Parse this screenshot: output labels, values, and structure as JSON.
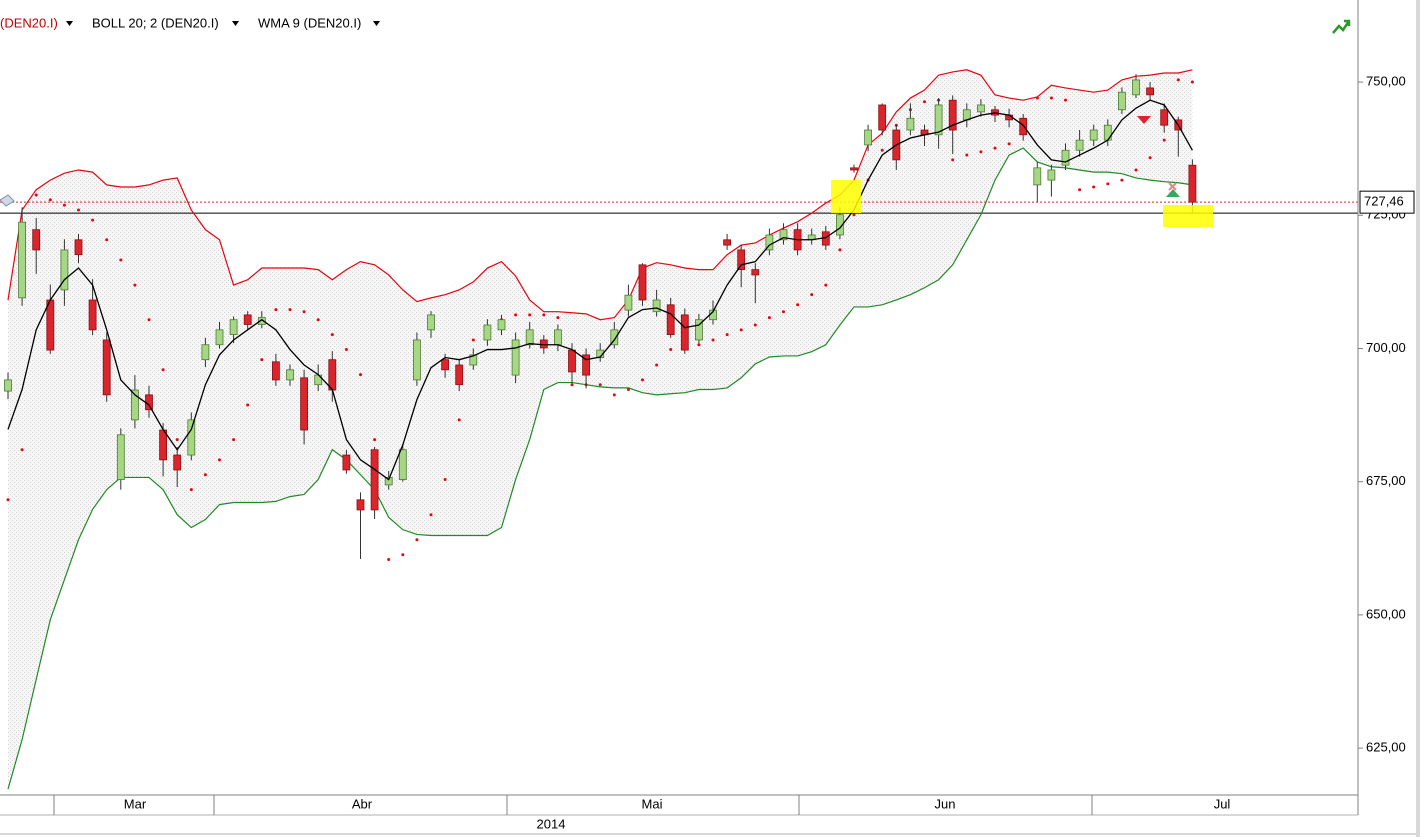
{
  "chart_data": {
    "type": "candlestick",
    "instrument_label": "(DEN20.I)",
    "open": [
      692.0,
      709.5,
      722.3,
      709.1,
      711.0,
      720.4,
      709.1,
      701.6,
      675.4,
      686.6,
      691.3,
      684.7,
      680.0,
      680.0,
      697.9,
      700.7,
      702.6,
      706.3,
      704.5,
      697.5,
      694.1,
      694.5,
      693.2,
      697.9,
      680.0,
      671.6,
      681.0,
      674.4,
      675.4,
      694.1,
      703.5,
      697.9,
      696.9,
      696.9,
      701.6,
      703.5,
      695.0,
      700.7,
      701.6,
      700.7,
      699.7,
      698.8,
      698.3,
      700.7,
      707.2,
      715.7,
      706.9,
      708.2,
      706.3,
      701.6,
      705.4,
      720.4,
      718.5,
      714.8,
      718.5,
      720.4,
      722.3,
      720.4,
      721.9,
      721.3,
      733.9,
      738.2,
      745.7,
      741.0,
      741.0,
      741.0,
      740.1,
      746.6,
      742.9,
      744.4,
      744.8,
      743.8,
      743.2,
      730.7,
      731.6,
      734.4,
      737.2,
      739.1,
      739.1,
      744.8,
      747.6,
      748.9,
      744.8,
      742.9,
      734.4
    ],
    "high": [
      695.5,
      726.5,
      724.5,
      712.0,
      720.5,
      721.5,
      713.0,
      703.0,
      685.0,
      695.0,
      693.0,
      686.0,
      681.5,
      688.0,
      702.0,
      705.0,
      706.0,
      707.0,
      707.0,
      699.0,
      697.0,
      696.0,
      697.0,
      699.5,
      681.0,
      673.0,
      681.5,
      677.0,
      682.0,
      703.0,
      707.0,
      699.0,
      698.0,
      700.0,
      705.5,
      706.3,
      703.0,
      705.0,
      702.5,
      704.5,
      701.0,
      700.0,
      701.0,
      705.0,
      712.0,
      716.0,
      711.0,
      709.5,
      707.5,
      706.5,
      709.0,
      721.5,
      719.5,
      716.0,
      722.5,
      723.5,
      723.5,
      722.5,
      723.0,
      726.5,
      734.5,
      742.0,
      746.0,
      742.0,
      746.0,
      742.0,
      747.0,
      747.5,
      746.0,
      746.8,
      745.5,
      745.0,
      744.0,
      735.0,
      734.5,
      738.5,
      741.0,
      742.0,
      743.0,
      749.0,
      751.5,
      750.0,
      746.0,
      743.5,
      735.5
    ],
    "low": [
      690.5,
      708.0,
      714.0,
      699.0,
      708.0,
      716.0,
      702.5,
      690.0,
      673.5,
      685.0,
      687.0,
      676.0,
      674.0,
      679.0,
      696.5,
      700.0,
      701.0,
      703.5,
      703.8,
      693.0,
      693.0,
      682.0,
      692.0,
      690.0,
      676.5,
      660.5,
      668.0,
      673.5,
      675.0,
      693.0,
      702.0,
      694.5,
      692.0,
      696.0,
      700.5,
      702.5,
      693.5,
      700.0,
      699.0,
      699.5,
      693.5,
      692.5,
      697.5,
      700.0,
      706.0,
      708.0,
      706.0,
      702.0,
      699.0,
      701.0,
      704.5,
      718.5,
      711.5,
      708.5,
      717.5,
      719.5,
      717.5,
      719.5,
      718.5,
      720.5,
      733.0,
      737.0,
      740.0,
      733.5,
      740.0,
      738.0,
      737.5,
      736.5,
      741.5,
      743.5,
      742.5,
      741.5,
      739.0,
      727.5,
      728.5,
      733.5,
      736.0,
      738.0,
      738.0,
      744.0,
      747.0,
      746.5,
      740.5,
      736.0,
      725.4
    ],
    "close": [
      694.1,
      723.7,
      718.5,
      699.7,
      718.5,
      717.6,
      703.5,
      691.3,
      683.8,
      692.2,
      688.5,
      679.1,
      677.2,
      686.6,
      700.7,
      703.5,
      705.4,
      704.5,
      705.8,
      694.1,
      696.0,
      684.7,
      695.0,
      692.2,
      677.2,
      669.7,
      669.7,
      675.8,
      681.0,
      701.6,
      706.3,
      696.0,
      693.2,
      698.8,
      704.4,
      705.4,
      701.6,
      703.5,
      700.1,
      703.5,
      695.6,
      695.0,
      699.7,
      703.5,
      710.0,
      709.1,
      709.1,
      702.6,
      699.7,
      705.4,
      707.2,
      719.4,
      714.8,
      713.8,
      721.3,
      722.3,
      718.5,
      721.3,
      719.4,
      725.1,
      733.5,
      741.0,
      741.0,
      735.4,
      743.2,
      740.1,
      745.7,
      741.0,
      744.8,
      745.7,
      743.8,
      742.9,
      740.1,
      733.9,
      733.5,
      737.2,
      739.1,
      741.0,
      741.9,
      748.1,
      750.4,
      747.6,
      741.9,
      741.0,
      727.46
    ],
    "up_color": "#a6d785",
    "down_color": "#d9252b",
    "bollinger": {
      "label": "BOLL 20; 2 (DEN20.I)",
      "upper_color": "#e30613",
      "lower_color": "#1f8b24",
      "upper": [
        709.1,
        726.0,
        729.8,
        731.6,
        732.9,
        733.5,
        733.1,
        730.7,
        730.3,
        730.3,
        730.7,
        731.6,
        732.0,
        726.0,
        722.3,
        720.4,
        711.9,
        712.9,
        715.1,
        715.1,
        715.1,
        715.1,
        714.8,
        712.9,
        714.8,
        716.3,
        715.7,
        713.8,
        711.0,
        708.8,
        709.5,
        710.1,
        711.0,
        712.5,
        715.1,
        716.3,
        713.6,
        709.1,
        706.9,
        706.9,
        706.7,
        706.5,
        705.4,
        705.8,
        709.1,
        715.1,
        716.1,
        715.7,
        715.1,
        714.8,
        714.8,
        717.6,
        719.4,
        719.8,
        721.3,
        722.6,
        723.8,
        725.4,
        727.3,
        728.8,
        731.6,
        738.2,
        740.4,
        744.4,
        747.0,
        748.5,
        751.3,
        751.9,
        752.3,
        751.3,
        747.6,
        747.0,
        746.6,
        747.2,
        749.4,
        748.9,
        748.5,
        748.1,
        748.5,
        750.4,
        751.1,
        751.3,
        751.7,
        751.7,
        752.3
      ],
      "lower": [
        617.3,
        626.6,
        637.9,
        649.1,
        656.6,
        664.1,
        669.8,
        673.5,
        675.8,
        675.8,
        675.8,
        673.5,
        668.8,
        666.4,
        667.9,
        670.7,
        671.1,
        671.1,
        671.1,
        671.3,
        672.2,
        672.6,
        675.4,
        681.0,
        679.1,
        676.3,
        673.5,
        668.3,
        666.0,
        665.1,
        664.9,
        664.9,
        664.9,
        664.9,
        664.9,
        666.4,
        675.4,
        682.9,
        692.3,
        693.6,
        693.6,
        693.2,
        692.8,
        692.6,
        692.6,
        691.7,
        691.3,
        691.5,
        691.7,
        692.3,
        692.3,
        692.6,
        694.5,
        697.1,
        698.4,
        698.6,
        698.6,
        699.4,
        700.7,
        704.4,
        707.8,
        707.8,
        708.2,
        709.1,
        710.1,
        711.4,
        712.9,
        715.7,
        720.4,
        725.1,
        731.6,
        736.3,
        737.6,
        735.0,
        734.1,
        733.9,
        733.5,
        733.1,
        733.1,
        732.8,
        732.0,
        731.6,
        731.3,
        731.1,
        730.7
      ]
    },
    "wma": {
      "label": "WMA 9 (DEN20.I)",
      "color": "#000000",
      "values": [
        684.8,
        692.3,
        703.5,
        709.1,
        712.9,
        715.1,
        711.9,
        703.5,
        694.1,
        691.3,
        689.4,
        684.8,
        681.0,
        684.8,
        693.2,
        698.8,
        701.6,
        703.5,
        705.4,
        703.5,
        699.8,
        696.9,
        695.1,
        692.3,
        682.9,
        679.1,
        677.3,
        675.4,
        681.9,
        690.4,
        696.4,
        698.3,
        697.9,
        698.6,
        699.8,
        699.8,
        700.1,
        700.9,
        700.7,
        700.7,
        699.8,
        697.9,
        698.4,
        701.6,
        705.8,
        707.3,
        707.6,
        706.5,
        703.9,
        704.4,
        706.9,
        711.9,
        715.7,
        716.3,
        719.4,
        720.8,
        720.4,
        720.4,
        720.8,
        722.6,
        726.0,
        731.6,
        736.3,
        738.2,
        739.5,
        740.1,
        740.6,
        741.9,
        742.9,
        743.8,
        744.2,
        743.8,
        741.9,
        738.2,
        735.4,
        735.0,
        736.3,
        737.6,
        739.1,
        742.9,
        745.1,
        746.6,
        745.7,
        741.9,
        737.2
      ]
    },
    "sar": {
      "color": "#e30613",
      "values": [
        671.6,
        681.0,
        728.8,
        727.9,
        726.9,
        726.0,
        724.1,
        720.4,
        716.6,
        711.9,
        705.4,
        696.0,
        682.9,
        673.5,
        676.3,
        679.1,
        682.9,
        689.4,
        697.9,
        707.3,
        707.3,
        706.9,
        705.4,
        702.6,
        699.8,
        695.1,
        682.9,
        660.4,
        661.3,
        664.1,
        668.8,
        675.4,
        686.6,
        701.6,
        703.5,
        705.4,
        706.3,
        706.3,
        706.3,
        705.8,
        693.2,
        693.2,
        693.2,
        691.3,
        692.3,
        694.1,
        696.9,
        699.8,
        700.3,
        700.7,
        701.6,
        702.6,
        703.5,
        704.4,
        705.8,
        706.9,
        708.2,
        710.1,
        711.9,
        718.5,
        725.1,
        731.6,
        737.2,
        741.9,
        744.8,
        746.3,
        746.6,
        735.4,
        736.3,
        736.9,
        737.6,
        738.4,
        741.9,
        747.0,
        747.0,
        746.6,
        729.8,
        730.3,
        730.9,
        731.6,
        733.5,
        735.8,
        739.1,
        750.4,
        750.0
      ]
    },
    "current_price": {
      "value": 727.46,
      "label": "727,46"
    },
    "reference_line": 725.4,
    "ylim": [
      616.2,
      765.4
    ],
    "yticks": [
      {
        "value": 625,
        "label": "625,00"
      },
      {
        "value": 650,
        "label": "650,00"
      },
      {
        "value": 675,
        "label": "675,00"
      },
      {
        "value": 700,
        "label": "700,00"
      },
      {
        "value": 725,
        "label": "725,00"
      },
      {
        "value": 750,
        "label": "750,00"
      }
    ],
    "x_labels": [
      "Mar",
      "Abr",
      "Mai",
      "Jun",
      "Jul"
    ],
    "x_group_label": "2014"
  }
}
